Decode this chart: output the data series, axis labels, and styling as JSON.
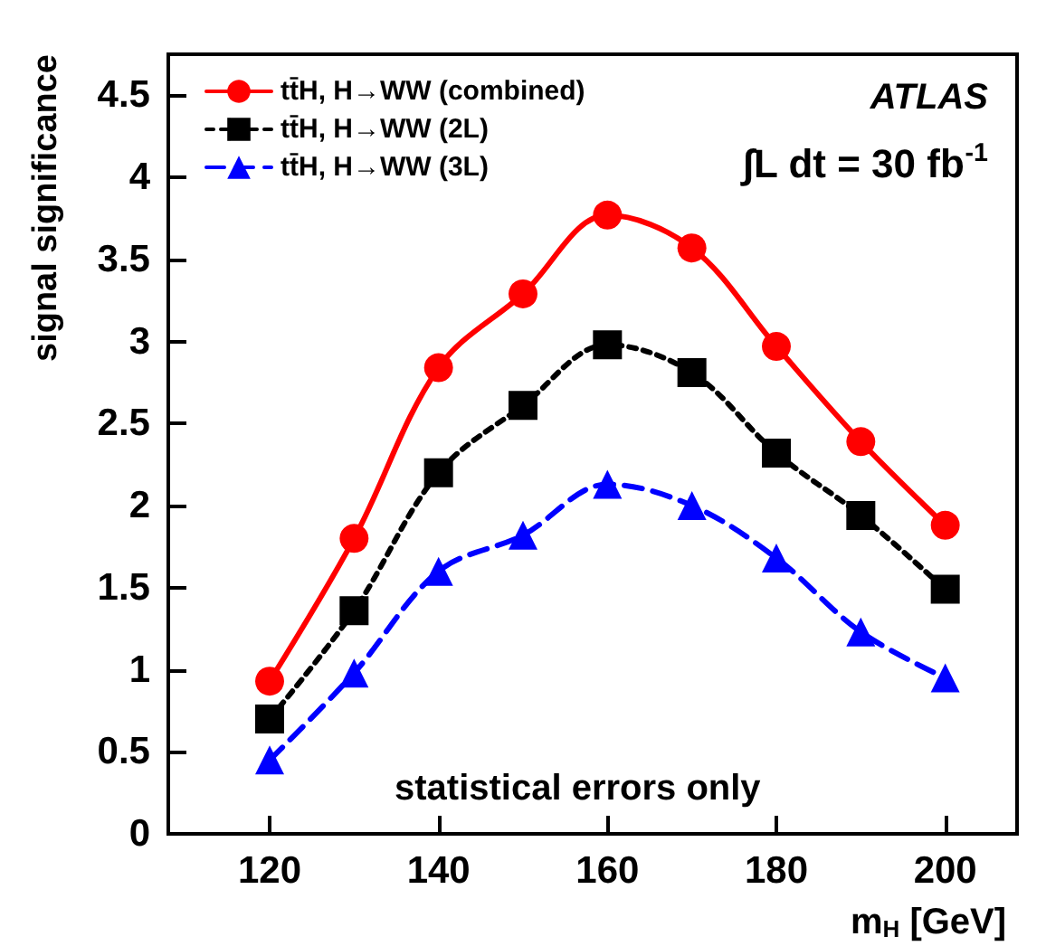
{
  "chart_data": {
    "type": "line",
    "xlabel": "m$_{H}$ [GeV]",
    "ylabel": "signal significance",
    "x": [
      120,
      130,
      140,
      150,
      160,
      170,
      180,
      190,
      200
    ],
    "xlim": [
      108,
      208.5
    ],
    "xticks": [
      120,
      140,
      160,
      180,
      200
    ],
    "ylim": [
      0,
      4.75
    ],
    "yticks": [
      0,
      0.5,
      1,
      1.5,
      2,
      2.5,
      3,
      3.5,
      4,
      4.5
    ],
    "series": [
      {
        "name": "tt̄H, H→WW (combined)",
        "color": "#ff0000",
        "marker": "circle",
        "line_style": "solid",
        "values": [
          0.93,
          1.8,
          2.84,
          3.29,
          3.77,
          3.57,
          2.97,
          2.39,
          1.88
        ]
      },
      {
        "name": "tt̄H, H→WW (2L)",
        "color": "#000000",
        "marker": "square",
        "line_style": "dotted",
        "values": [
          0.7,
          1.36,
          2.2,
          2.61,
          2.98,
          2.81,
          2.32,
          1.94,
          1.49
        ]
      },
      {
        "name": "tt̄H, H→WW (3L)",
        "color": "#0000ff",
        "marker": "triangle",
        "line_style": "dashed",
        "values": [
          0.45,
          0.98,
          1.6,
          1.82,
          2.13,
          2.0,
          1.68,
          1.23,
          0.95
        ]
      }
    ],
    "annotations": [
      "ATLAS",
      "∫L dt = 30 fb$^{-1}$",
      "statistical errors only"
    ],
    "legend": "top left",
    "grid": false
  }
}
